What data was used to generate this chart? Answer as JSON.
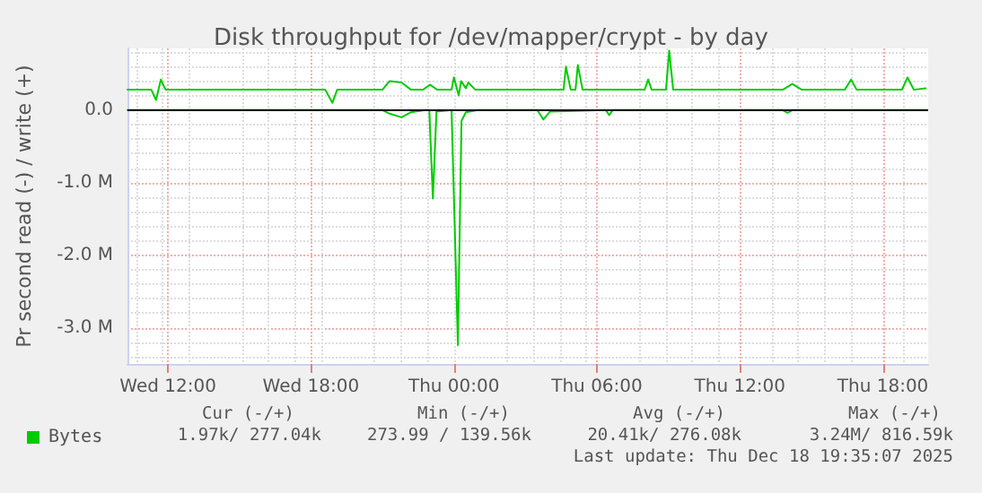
{
  "chart_data": {
    "type": "line",
    "title": "Disk throughput for /dev/mapper/crypt - by day",
    "ylabel": "Pr second read (-) / write (+)",
    "xlim": [
      "2025-12-17T10:18",
      "2025-12-18T19:54"
    ],
    "xticks": [
      {
        "value": "2025-12-17T12:00",
        "label": "Wed 12:00"
      },
      {
        "value": "2025-12-17T18:00",
        "label": "Wed 18:00"
      },
      {
        "value": "2025-12-18T00:00",
        "label": "Thu 00:00"
      },
      {
        "value": "2025-12-18T06:00",
        "label": "Thu 06:00"
      },
      {
        "value": "2025-12-18T12:00",
        "label": "Thu 12:00"
      },
      {
        "value": "2025-12-18T18:00",
        "label": "Thu 18:00"
      }
    ],
    "ylim": [
      -3.5,
      0.85
    ],
    "yticks": [
      {
        "value": -3,
        "label": "-3.0 M"
      },
      {
        "value": -2,
        "label": "-2.0 M"
      },
      {
        "value": -1,
        "label": "-1.0 M"
      },
      {
        "value": 0,
        "label": "0.0"
      }
    ],
    "grid": true,
    "legend": "bottom left",
    "marker": "none",
    "line_style": "solid",
    "ref_lines": [
      {
        "axis": "y",
        "value": 0,
        "color": "#000000"
      }
    ],
    "series": [
      {
        "name": "Bytes",
        "color": "#00cc00",
        "x": [
          "2025-12-17T10:18",
          "2025-12-17T11:18",
          "2025-12-17T11:30",
          "2025-12-17T11:42",
          "2025-12-17T11:54",
          "2025-12-17T15:48",
          "2025-12-17T18:36",
          "2025-12-17T18:54",
          "2025-12-17T19:06",
          "2025-12-17T21:00",
          "2025-12-17T21:18",
          "2025-12-17T21:48",
          "2025-12-17T22:12",
          "2025-12-17T22:42",
          "2025-12-17T23:00",
          "2025-12-17T23:18",
          "2025-12-17T23:54",
          "2025-12-18T00:00",
          "2025-12-18T00:12",
          "2025-12-18T00:18",
          "2025-12-18T00:30",
          "2025-12-18T00:36",
          "2025-12-18T00:54",
          "2025-12-18T04:36",
          "2025-12-18T04:42",
          "2025-12-18T04:54",
          "2025-12-18T05:06",
          "2025-12-18T05:12",
          "2025-12-18T05:24",
          "2025-12-18T08:00",
          "2025-12-18T08:09",
          "2025-12-18T08:18",
          "2025-12-18T08:54",
          "2025-12-18T09:02",
          "2025-12-18T09:12",
          "2025-12-18T13:48",
          "2025-12-18T14:12",
          "2025-12-18T14:36",
          "2025-12-18T16:24",
          "2025-12-18T16:40",
          "2025-12-18T16:54",
          "2025-12-18T18:48",
          "2025-12-18T19:02",
          "2025-12-18T19:18",
          "2025-12-18T19:48"
        ],
        "values": [
          0.28,
          0.28,
          0.14,
          0.42,
          0.28,
          0.28,
          0.28,
          0.1,
          0.28,
          0.28,
          0.4,
          0.38,
          0.28,
          0.28,
          0.35,
          0.28,
          0.28,
          0.45,
          0.2,
          0.4,
          0.3,
          0.38,
          0.28,
          0.28,
          0.6,
          0.28,
          0.28,
          0.62,
          0.28,
          0.28,
          0.42,
          0.28,
          0.28,
          0.82,
          0.28,
          0.28,
          0.36,
          0.28,
          0.28,
          0.42,
          0.28,
          0.28,
          0.45,
          0.28,
          0.3
        ]
      },
      {
        "color": "#00cc00",
        "x": [
          "2025-12-17T10:18",
          "2025-12-17T21:00",
          "2025-12-17T21:18",
          "2025-12-17T21:48",
          "2025-12-17T22:12",
          "2025-12-17T22:48",
          "2025-12-17T22:58",
          "2025-12-17T23:07",
          "2025-12-17T23:16",
          "2025-12-17T23:54",
          "2025-12-18T00:10",
          "2025-12-18T00:19",
          "2025-12-18T00:30",
          "2025-12-18T01:00",
          "2025-12-18T03:30",
          "2025-12-18T03:45",
          "2025-12-18T04:02",
          "2025-12-18T06:22",
          "2025-12-18T06:31",
          "2025-12-18T06:40",
          "2025-12-18T13:48",
          "2025-12-18T14:00",
          "2025-12-18T14:12",
          "2025-12-18T19:48"
        ],
        "values": [
          0,
          0,
          -0.05,
          -0.1,
          -0.03,
          0,
          0,
          -1.22,
          -0.02,
          0,
          -3.24,
          -0.15,
          -0.03,
          0,
          0,
          -0.13,
          -0.02,
          0,
          -0.07,
          0,
          0,
          -0.04,
          0,
          0
        ]
      }
    ],
    "annotations": [
      "Cur (-/+)",
      "Min (-/+)",
      "Avg (-/+)",
      "Max (-/+)",
      "1.97k/ 277.04k",
      "273.99 / 139.56k",
      "20.41k/ 276.08k",
      "3.24M/ 816.59k",
      "Last update: Thu Dec 18 19:35:07 2025"
    ]
  }
}
